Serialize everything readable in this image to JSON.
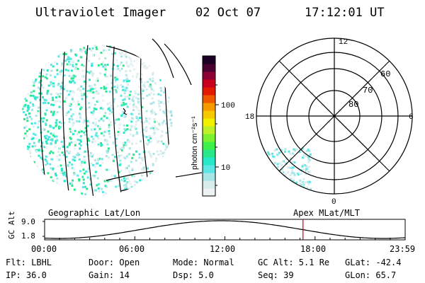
{
  "header": {
    "title": "Ultraviolet Imager",
    "date": "02 Oct 07",
    "time": "17:12:01 UT"
  },
  "colorbar": {
    "unit": "photon cm⁻²s⁻¹",
    "ticks": [
      "100",
      "10"
    ],
    "colors": [
      "#eef2f2",
      "#d8ecec",
      "#a8e6e6",
      "#5ce6e6",
      "#26e8c8",
      "#2ae88a",
      "#3ef04a",
      "#7af230",
      "#bef028",
      "#f0f000",
      "#f6c800",
      "#f69a00",
      "#ef5a00",
      "#e41a00",
      "#c8001e",
      "#8c0032",
      "#4a0030",
      "#1a0022"
    ]
  },
  "polar": {
    "mlt_labels": {
      "top": "12",
      "right": "6",
      "bottom": "0",
      "left": "18"
    },
    "lat_labels": [
      "60",
      "70",
      "80"
    ]
  },
  "strip": {
    "axis_label": "GC Alt",
    "y_ticks": [
      "9.0",
      "1.8"
    ],
    "left_caption": "Geographic Lat/Lon",
    "right_caption": "Apex MLat/MLT",
    "x_ticks": [
      "00:00",
      "06:00",
      "12:00",
      "18:00",
      "23:59"
    ],
    "marker_fraction": 0.7167,
    "marker_color": "#cc0000"
  },
  "info": {
    "filter": "Flt: LBHL",
    "ip": "IP: 36.0",
    "door": "Door: Open",
    "gain": "Gain: 14",
    "mode": "Mode: Normal",
    "dsp": "Dsp:   5.0",
    "gc_alt": "GC Alt: 5.1 Re",
    "seq": "Seq: 39",
    "glat": "GLat: -42.4",
    "glon": "GLon: 65.7"
  }
}
